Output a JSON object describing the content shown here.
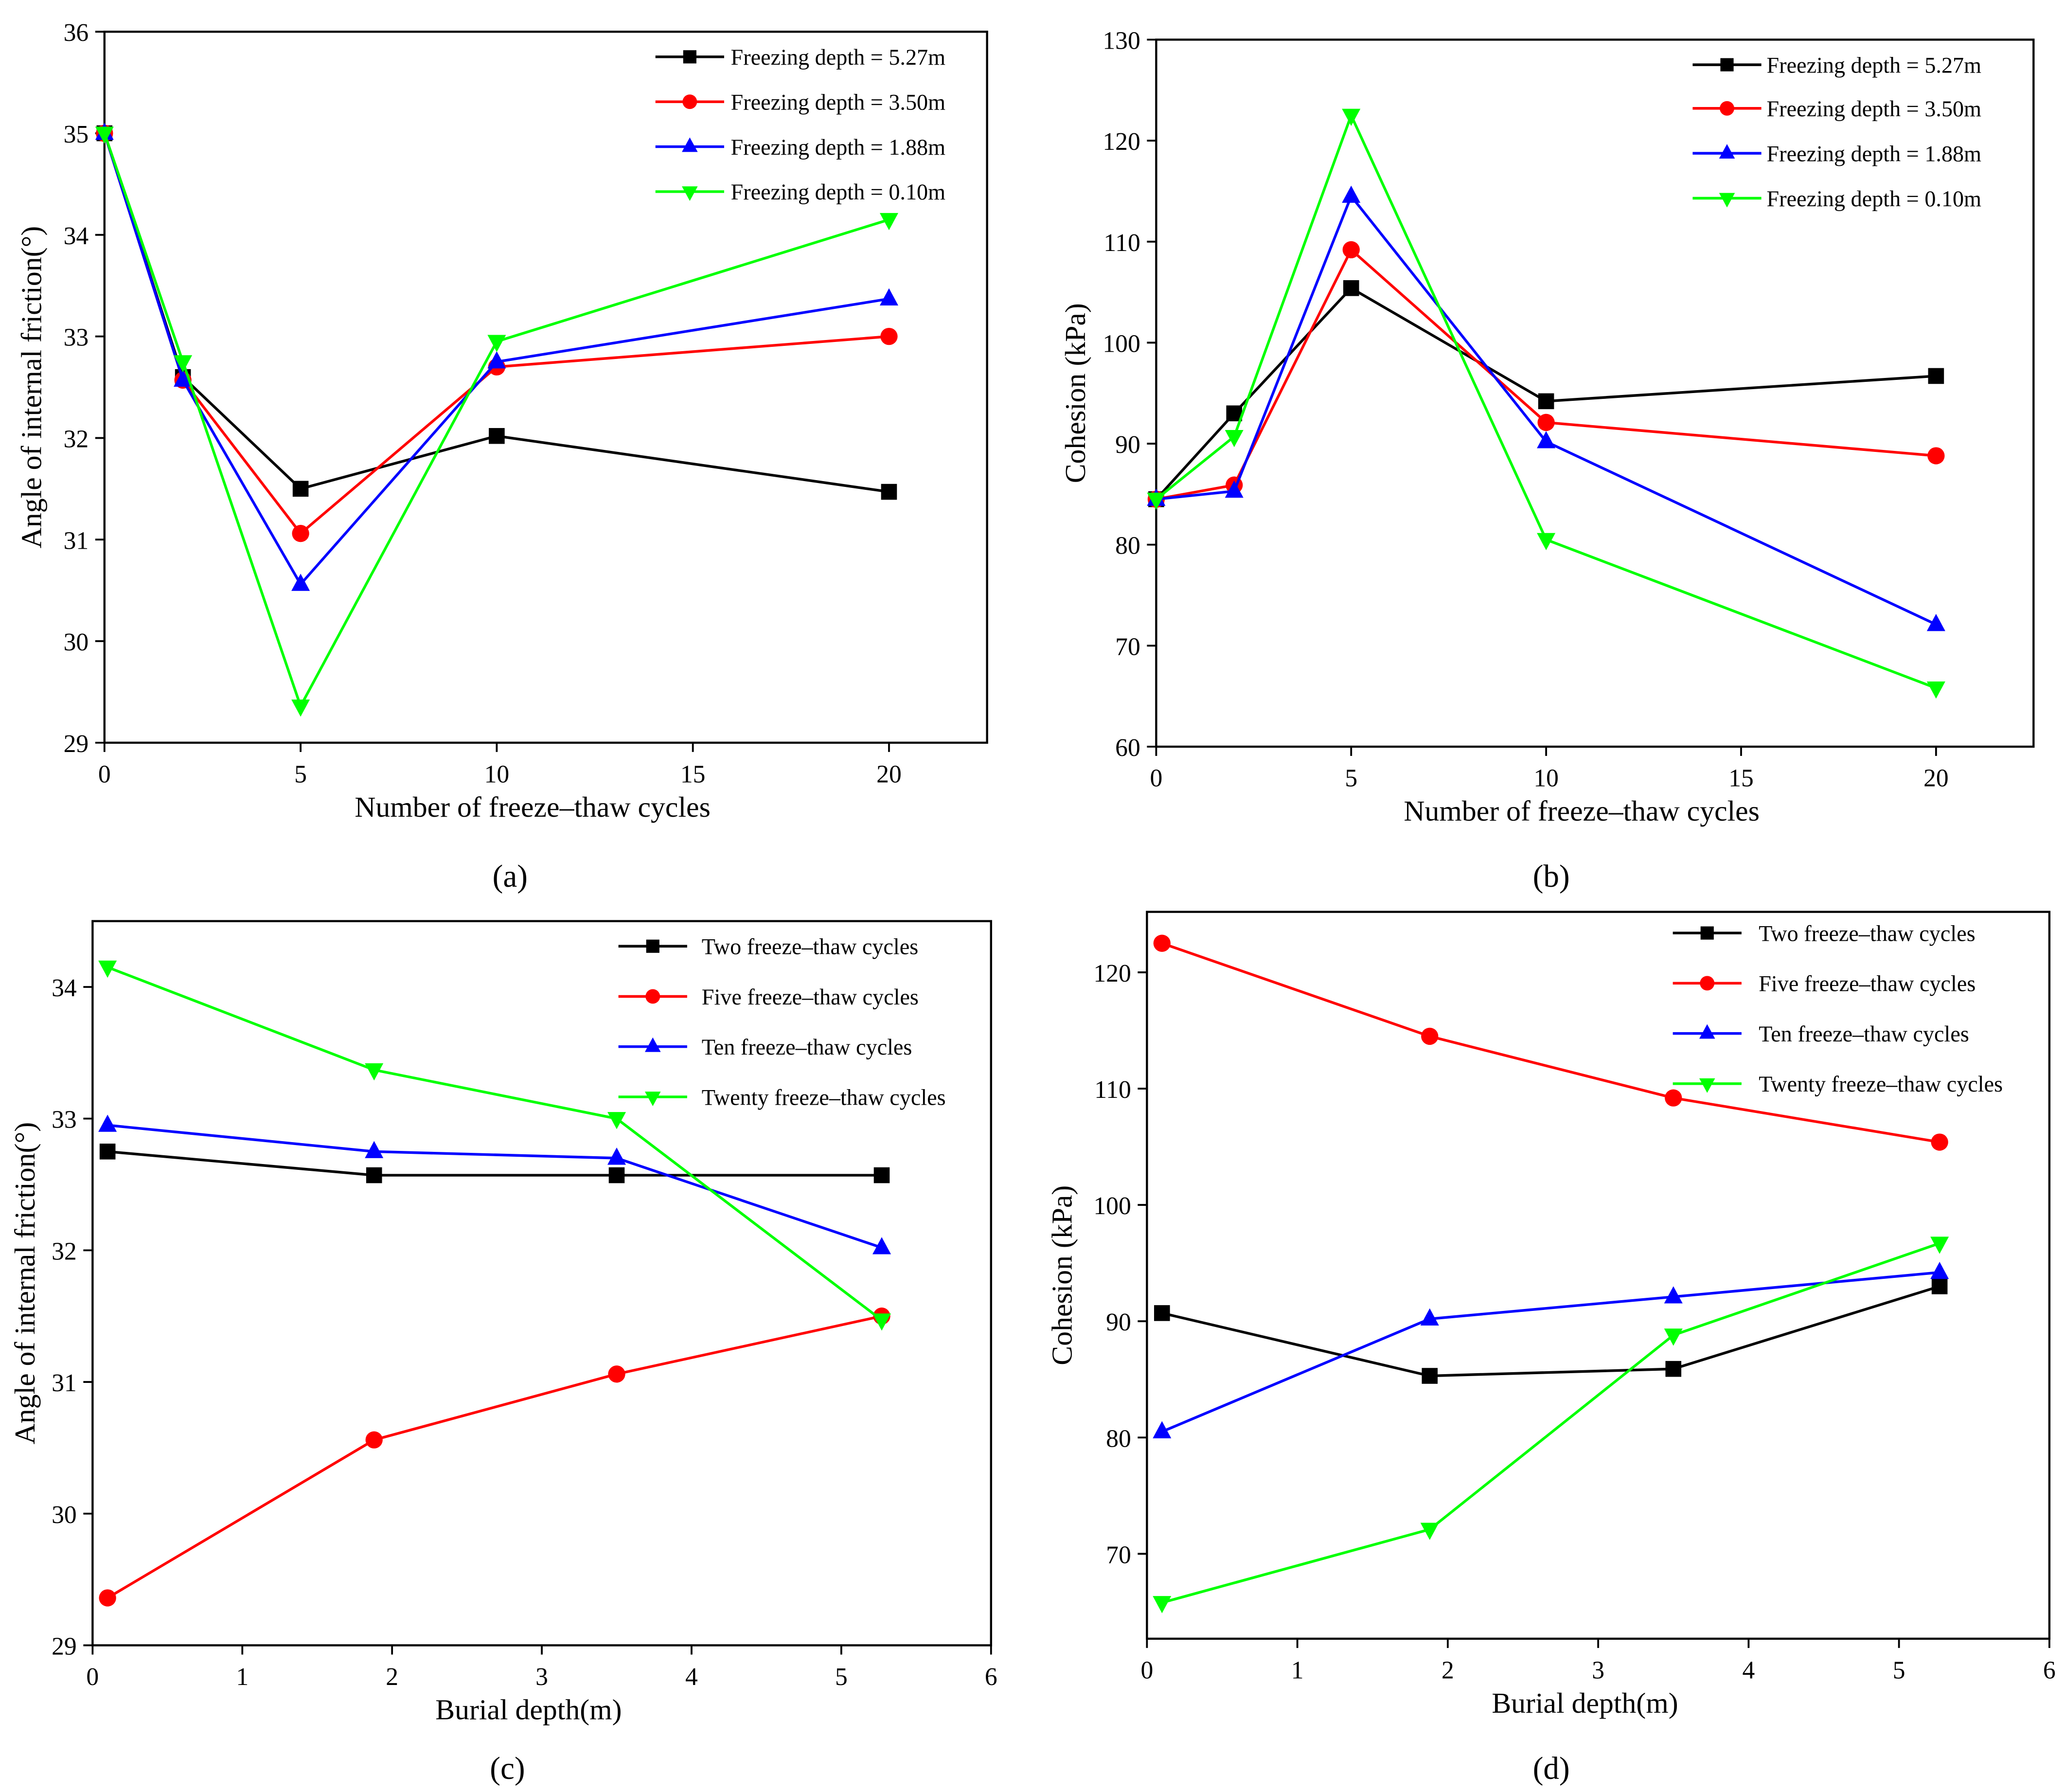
{
  "chart_data": [
    {
      "type": "line",
      "panel_label": "(a)",
      "xlabel": "Number of freeze–thaw cycles",
      "ylabel": "Angle of internal friction(°)",
      "xlim": [
        0,
        22.5
      ],
      "ylim": [
        29,
        36
      ],
      "xticks": [
        0,
        5,
        10,
        15,
        20
      ],
      "yticks": [
        29,
        30,
        31,
        32,
        33,
        34,
        35,
        36
      ],
      "x": [
        0,
        2,
        5,
        10,
        20
      ],
      "legend_placement": "top-right",
      "series": [
        {
          "name": "Freezing depth =  5.27m",
          "color": "#000000",
          "marker": "square",
          "values": [
            35.0,
            32.6,
            31.5,
            32.02,
            31.47
          ]
        },
        {
          "name": "Freezing depth =  3.50m",
          "color": "#ff0000",
          "marker": "circle",
          "values": [
            35.0,
            32.57,
            31.06,
            32.7,
            33.0
          ]
        },
        {
          "name": "Freezing depth =  1.88m",
          "color": "#0000ff",
          "marker": "triangle-up",
          "values": [
            35.0,
            32.57,
            30.56,
            32.75,
            33.37
          ]
        },
        {
          "name": "Freezing depth =  0.10m",
          "color": "#00ff00",
          "marker": "triangle-down",
          "values": [
            35.0,
            32.75,
            29.36,
            32.95,
            34.15
          ]
        }
      ]
    },
    {
      "type": "line",
      "panel_label": "(b)",
      "xlabel": "Number of freeze–thaw cycles",
      "ylabel": "Cohesion (kPa)",
      "xlim": [
        0,
        22.5
      ],
      "ylim": [
        60,
        130
      ],
      "xticks": [
        0,
        5,
        10,
        15,
        20
      ],
      "yticks": [
        60,
        70,
        80,
        90,
        100,
        110,
        120,
        130
      ],
      "x": [
        0,
        2,
        5,
        10,
        20
      ],
      "legend_placement": "top-right",
      "series": [
        {
          "name": "Freezing depth =  5.27m",
          "color": "#000000",
          "marker": "square",
          "values": [
            84.5,
            93.0,
            105.4,
            94.2,
            96.7
          ]
        },
        {
          "name": "Freezing depth =  3.50m",
          "color": "#ff0000",
          "marker": "circle",
          "values": [
            84.5,
            85.9,
            109.2,
            92.1,
            88.8
          ]
        },
        {
          "name": "Freezing depth =  1.88m",
          "color": "#0000ff",
          "marker": "triangle-up",
          "values": [
            84.5,
            85.3,
            114.5,
            90.2,
            72.1
          ]
        },
        {
          "name": "Freezing depth =  0.10m",
          "color": "#00ff00",
          "marker": "triangle-down",
          "values": [
            84.5,
            90.7,
            122.5,
            80.5,
            65.8
          ]
        }
      ]
    },
    {
      "type": "line",
      "panel_label": "(c)",
      "xlabel": "Burial depth(m)",
      "ylabel": "Angle of internal friction(°)",
      "xlim": [
        0,
        6
      ],
      "ylim": [
        29,
        34.5
      ],
      "xticks": [
        0,
        1,
        2,
        3,
        4,
        5,
        6
      ],
      "yticks": [
        29,
        30,
        31,
        32,
        33,
        34
      ],
      "x": [
        0.1,
        1.88,
        3.5,
        5.27
      ],
      "legend_placement": "top-right",
      "series": [
        {
          "name": "Two freeze–thaw cycles",
          "color": "#000000",
          "marker": "square",
          "values": [
            32.75,
            32.57,
            32.57,
            32.57
          ]
        },
        {
          "name": "Five freeze–thaw cycles",
          "color": "#ff0000",
          "marker": "circle",
          "values": [
            29.36,
            30.56,
            31.06,
            31.5
          ]
        },
        {
          "name": "Ten freeze–thaw cycles",
          "color": "#0000ff",
          "marker": "triangle-up",
          "values": [
            32.95,
            32.75,
            32.7,
            32.02
          ]
        },
        {
          "name": "Twenty freeze–thaw cycles",
          "color": "#00ff00",
          "marker": "triangle-down",
          "values": [
            34.15,
            33.37,
            33.0,
            31.47
          ]
        }
      ]
    },
    {
      "type": "line",
      "panel_label": "(d)",
      "xlabel": "Burial depth(m)",
      "ylabel": "Cohesion (kPa)",
      "xlim": [
        0,
        6
      ],
      "ylim": [
        62.7,
        125.2
      ],
      "xticks": [
        0,
        1,
        2,
        3,
        4,
        5,
        6
      ],
      "yticks": [
        70,
        80,
        90,
        100,
        110,
        120
      ],
      "x": [
        0.1,
        1.88,
        3.5,
        5.27
      ],
      "legend_placement": "top-right",
      "series": [
        {
          "name": "Two freeze–thaw cycles",
          "color": "#000000",
          "marker": "square",
          "values": [
            90.7,
            85.3,
            85.9,
            93.0
          ]
        },
        {
          "name": "Five freeze–thaw cycles",
          "color": "#ff0000",
          "marker": "circle",
          "values": [
            122.5,
            114.5,
            109.2,
            105.4
          ]
        },
        {
          "name": "Ten freeze–thaw cycles",
          "color": "#0000ff",
          "marker": "triangle-up",
          "values": [
            80.5,
            90.2,
            92.1,
            94.2
          ]
        },
        {
          "name": "Twenty freeze–thaw cycles",
          "color": "#00ff00",
          "marker": "triangle-down",
          "values": [
            65.8,
            72.1,
            88.8,
            96.7
          ]
        }
      ]
    }
  ]
}
